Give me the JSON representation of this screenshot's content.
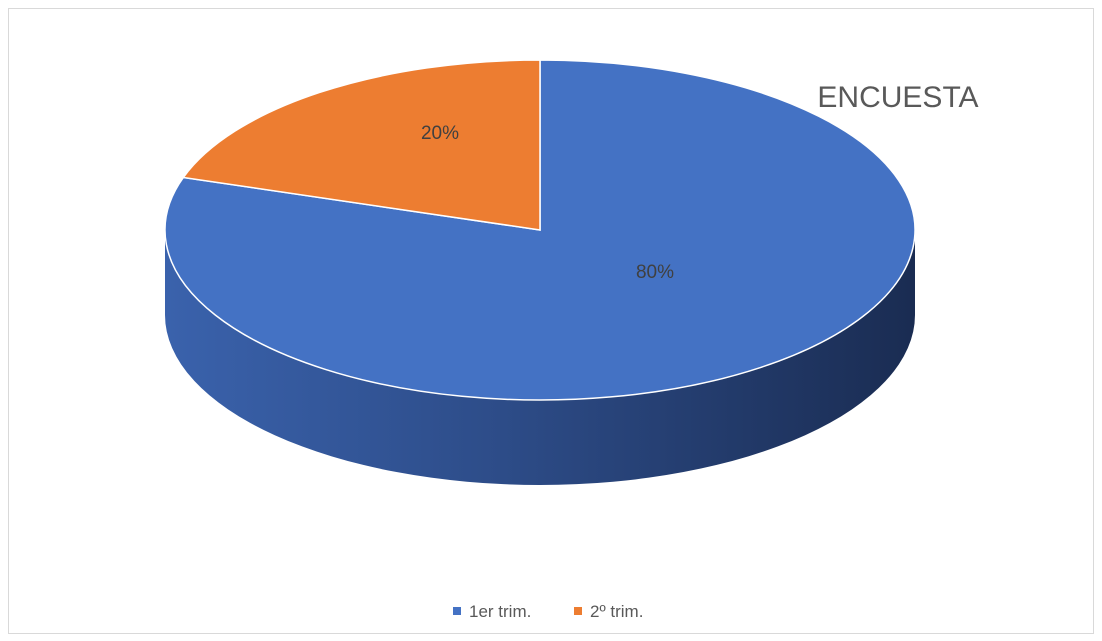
{
  "chart_data": {
    "type": "pie",
    "title": "ENCUESTA",
    "categories": [
      "1er trim.",
      "2º trim."
    ],
    "values": [
      80,
      20
    ],
    "data_labels": [
      "80%",
      "20%"
    ],
    "colors": [
      "#4472C4",
      "#ED7D31"
    ],
    "style": "3d",
    "legend": "bottom"
  }
}
